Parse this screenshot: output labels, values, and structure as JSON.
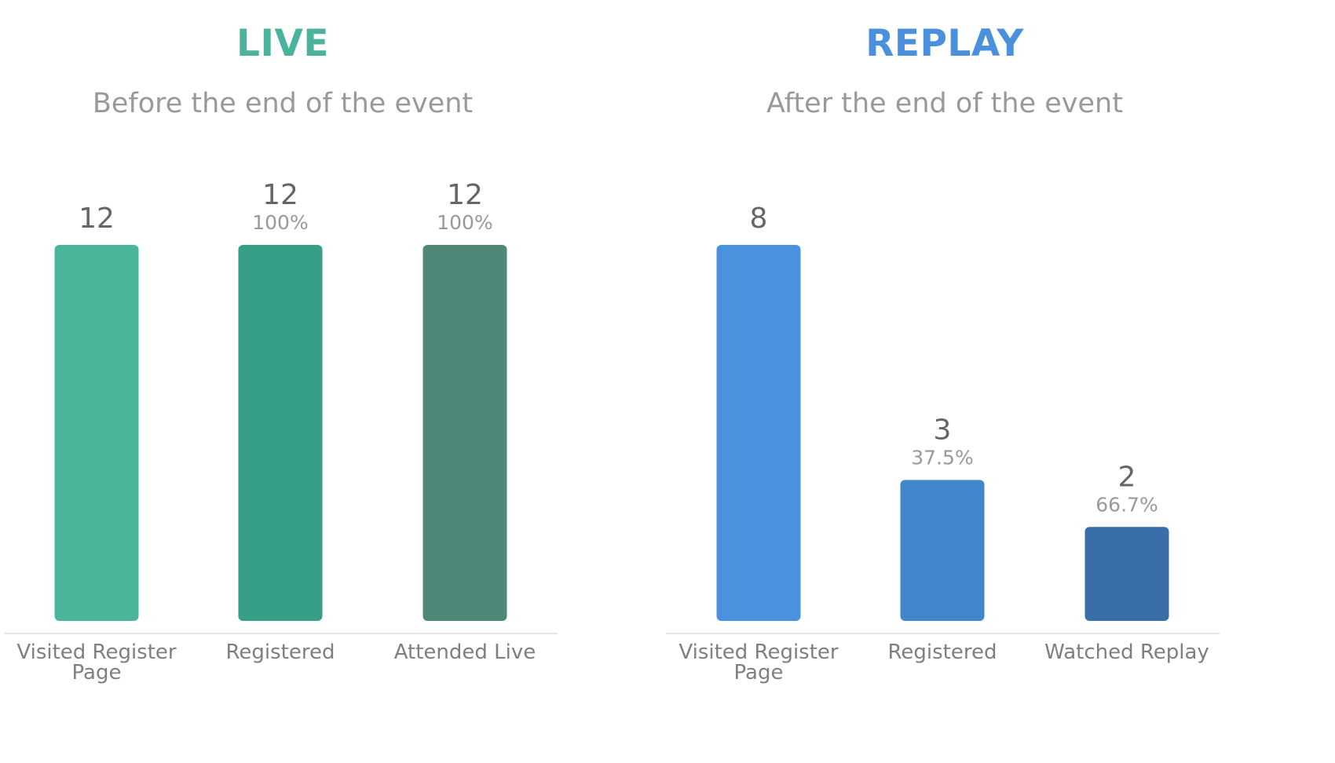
{
  "chart_data": [
    {
      "type": "bar",
      "title": "LIVE",
      "subtitle": "Before the end of the event",
      "title_color": "#4bb39b",
      "categories": [
        "Visited Register Page",
        "Registered",
        "Attended Live"
      ],
      "values": [
        12,
        12,
        12
      ],
      "percent_labels": [
        "",
        "100%",
        "100%"
      ],
      "bar_colors": [
        "#4bb59c",
        "#379e87",
        "#4f8878"
      ],
      "ylim": [
        0,
        12
      ],
      "grid": false,
      "legend": "none"
    },
    {
      "type": "bar",
      "title": "REPLAY",
      "subtitle": "After the end of the event",
      "title_color": "#4a90dd",
      "categories": [
        "Visited Register Page",
        "Registered",
        "Watched Replay"
      ],
      "values": [
        8,
        3,
        2
      ],
      "percent_labels": [
        "",
        "37.5%",
        "66.7%"
      ],
      "bar_colors": [
        "#4b92de",
        "#4286cb",
        "#3a6ea9"
      ],
      "ylim": [
        0,
        8
      ],
      "grid": false,
      "legend": "none"
    }
  ]
}
